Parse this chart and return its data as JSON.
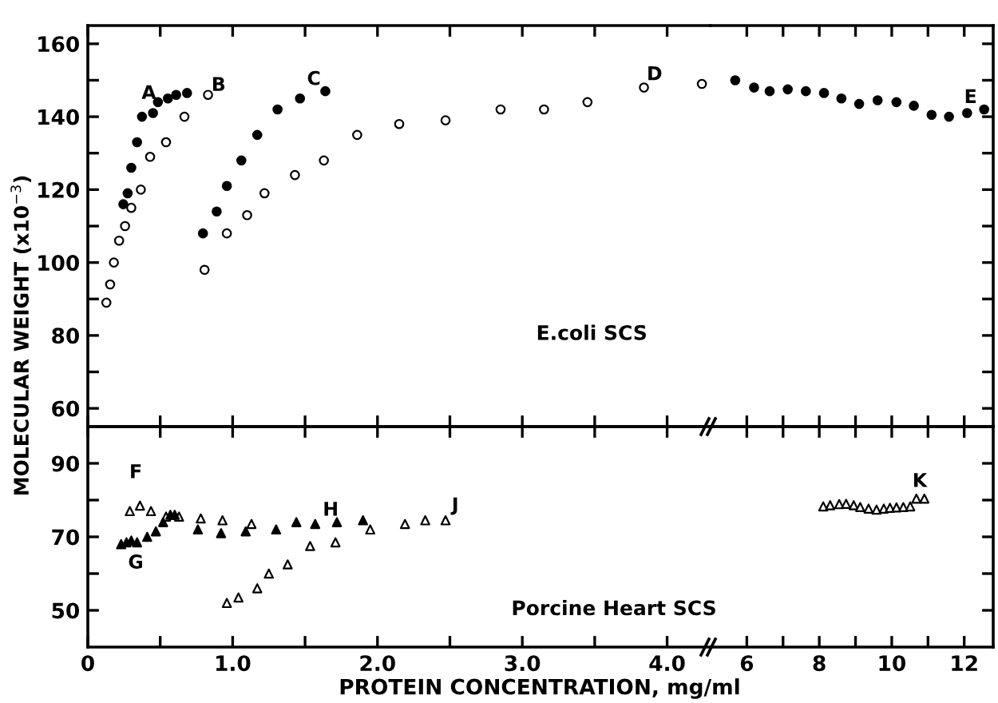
{
  "chart_data": [
    {
      "type": "scatter",
      "ylabel": "MOLECULAR WEIGHT (x10$^{−3}$)",
      "xlim": [
        0,
        4.3
      ],
      "ylim": [
        55,
        165
      ],
      "xticks": [
        {
          "value": 0,
          "label": null
        },
        {
          "value": 0.5,
          "label": null
        },
        {
          "value": 1,
          "label": null
        },
        {
          "value": 1.5,
          "label": null
        },
        {
          "value": 2,
          "label": null
        },
        {
          "value": 2.5,
          "label": null
        },
        {
          "value": 3,
          "label": null
        },
        {
          "value": 3.5,
          "label": null
        },
        {
          "value": 4,
          "label": null
        }
      ],
      "yticks": [
        60,
        {
          "value": 70,
          "label": null
        },
        80,
        {
          "value": 90,
          "label": null
        },
        100,
        {
          "value": 110,
          "label": null
        },
        120,
        {
          "value": 130,
          "label": null
        },
        140,
        {
          "value": 150,
          "label": null
        },
        160
      ],
      "tick_labels": "y",
      "marker": "circle",
      "series": [
        {
          "color": "#000000",
          "x": [
            0.245,
            0.275,
            0.3,
            0.34,
            0.374,
            0.45,
            0.484,
            0.553,
            0.61,
            0.685,
            0.795,
            0.89,
            0.96,
            1.06,
            1.17,
            1.31,
            1.465,
            1.64
          ],
          "values": [
            116,
            119,
            126,
            133,
            140,
            141,
            144,
            145,
            146,
            146.5,
            108,
            114,
            121,
            128,
            135,
            142,
            145,
            147
          ]
        },
        {
          "color": "#ffffff",
          "x": [
            0.128,
            0.154,
            0.18,
            0.216,
            0.257,
            0.3,
            0.366,
            0.43,
            0.54,
            0.667,
            0.83,
            0.806,
            0.96,
            1.1,
            1.22,
            1.43,
            1.63,
            1.86,
            2.15,
            2.47,
            2.85,
            3.15,
            3.45,
            3.84,
            4.24
          ],
          "values": [
            89,
            94,
            100,
            106,
            110,
            115,
            120,
            129,
            133,
            140,
            146,
            98,
            108,
            113,
            119,
            124,
            128,
            135,
            138,
            139,
            142,
            142,
            144,
            148,
            149
          ]
        }
      ],
      "annotations": [
        "A",
        "B",
        "C",
        "D",
        "E.coli SCS"
      ]
    },
    {
      "type": "scatter",
      "xlim": [
        5,
        12.8
      ],
      "ylim": [
        55,
        165
      ],
      "xticks": [
        {
          "value": 6,
          "label": null
        },
        {
          "value": 7,
          "label": null
        },
        {
          "value": 8,
          "label": null
        },
        {
          "value": 9,
          "label": null
        },
        {
          "value": 10,
          "label": null
        },
        {
          "value": 11,
          "label": null
        },
        {
          "value": 12,
          "label": null
        }
      ],
      "yticks": [
        {
          "value": 60,
          "label": null
        },
        {
          "value": 70,
          "label": null
        },
        {
          "value": 80,
          "label": null
        },
        {
          "value": 90,
          "label": null
        },
        {
          "value": 100,
          "label": null
        },
        {
          "value": 110,
          "label": null
        },
        {
          "value": 120,
          "label": null
        },
        {
          "value": 130,
          "label": null
        },
        {
          "value": 140,
          "label": null
        },
        {
          "value": 150,
          "label": null
        },
        {
          "value": 160,
          "label": null
        }
      ],
      "tick_labels": false,
      "marker": "circle",
      "series": [
        {
          "color": "#000000",
          "x": [
            5.68,
            6.2,
            6.63,
            7.13,
            7.63,
            8.13,
            8.61,
            9.1,
            9.61,
            10.13,
            10.61,
            11.1,
            11.58,
            12.08,
            12.55
          ],
          "values": [
            150,
            148,
            147,
            147.5,
            147,
            146.5,
            145,
            143.5,
            144.5,
            144,
            143,
            140.5,
            140,
            141,
            142
          ]
        }
      ],
      "annotations": [
        "E"
      ]
    },
    {
      "type": "scatter",
      "xlabel": "PROTEIN CONCENTRATION, mg/ml",
      "xlim": [
        0,
        4.3
      ],
      "ylim": [
        40,
        100
      ],
      "xticks": [
        0,
        {
          "value": 0.5,
          "label": null
        },
        {
          "value": 1,
          "label": "1.0"
        },
        {
          "value": 1.5,
          "label": null
        },
        {
          "value": 2,
          "label": "2.0"
        },
        {
          "value": 2.5,
          "label": null
        },
        {
          "value": 3,
          "label": "3.0"
        },
        {
          "value": 3.5,
          "label": null
        },
        {
          "value": 4,
          "label": "4.0"
        }
      ],
      "yticks": [
        50,
        {
          "value": 60,
          "label": null
        },
        70,
        {
          "value": 80,
          "label": null
        },
        90
      ],
      "marker": "triangle",
      "series": [
        {
          "color": "#000000",
          "x": [
            0.23,
            0.267,
            0.3,
            0.34,
            0.41,
            0.47,
            0.52,
            0.57,
            0.6,
            0.76,
            0.92,
            1.09,
            1.3,
            1.44,
            1.57,
            1.72,
            1.9
          ],
          "values": [
            68,
            68.5,
            69,
            68.5,
            70,
            71.5,
            74,
            76,
            76,
            72,
            71,
            71.5,
            72,
            74,
            73.5,
            74,
            74.5
          ]
        },
        {
          "color": "#ffffff",
          "x": [
            0.29,
            0.36,
            0.436,
            0.54,
            0.63,
            0.78,
            0.93,
            1.13,
            1.95,
            2.19,
            2.33,
            2.47,
            0.96,
            1.04,
            1.17,
            1.25,
            1.38,
            1.535,
            1.71
          ],
          "values": [
            77,
            78.5,
            77,
            75.5,
            75.5,
            75,
            74.5,
            73.5,
            72,
            73.5,
            74.5,
            74.5,
            52,
            53.5,
            56,
            60,
            62.5,
            67.5,
            68.5
          ]
        }
      ],
      "annotations": [
        "F",
        "G",
        "H",
        "J",
        "Porcine Heart SCS"
      ]
    },
    {
      "type": "scatter",
      "xlim": [
        5,
        12.8
      ],
      "ylim": [
        40,
        100
      ],
      "xticks": [
        6,
        {
          "value": 7,
          "label": null
        },
        8,
        {
          "value": 9,
          "label": null
        },
        10,
        {
          "value": 11,
          "label": null
        },
        12
      ],
      "yticks": [
        {
          "value": 50,
          "label": null
        },
        {
          "value": 60,
          "label": null
        },
        {
          "value": 70,
          "label": null
        },
        {
          "value": 80,
          "label": null
        },
        {
          "value": 90,
          "label": null
        }
      ],
      "tick_labels": "x",
      "marker": "triangle",
      "series": [
        {
          "color": "#ffffff",
          "x": [
            8.11,
            8.3,
            8.55,
            8.74,
            8.95,
            9.13,
            9.36,
            9.58,
            9.78,
            9.95,
            10.13,
            10.32,
            10.51,
            10.68,
            10.9
          ],
          "values": [
            78.3,
            78.6,
            78.9,
            79,
            78.6,
            78.1,
            77.7,
            77.4,
            77.7,
            77.9,
            78,
            78.1,
            78.3,
            80.4,
            80.4
          ]
        }
      ],
      "annotations": [
        "K"
      ]
    }
  ]
}
